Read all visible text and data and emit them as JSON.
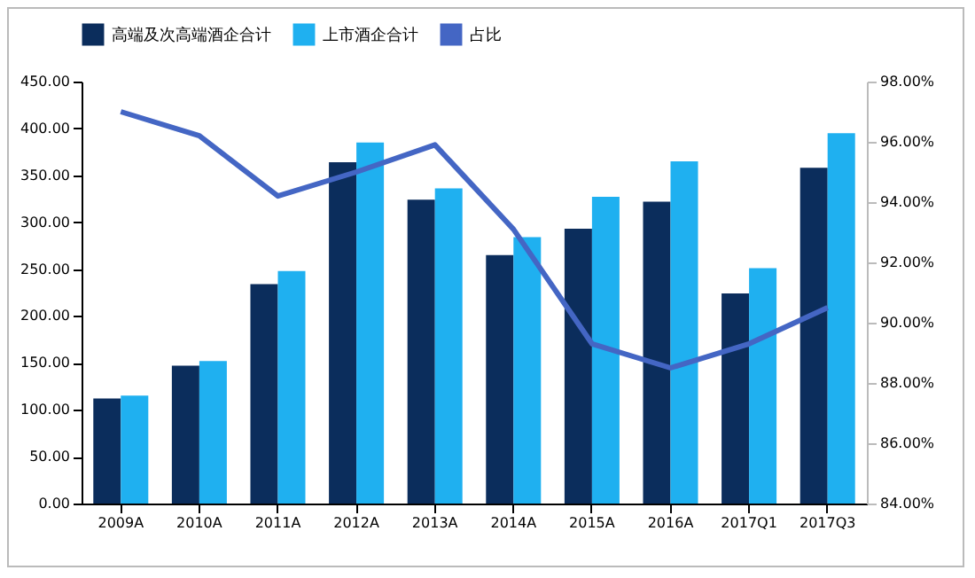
{
  "chart_data": {
    "type": "bar",
    "categories": [
      "2009A",
      "2010A",
      "2011A",
      "2012A",
      "2013A",
      "2014A",
      "2015A",
      "2016A",
      "2017Q1",
      "2017Q3"
    ],
    "series": [
      {
        "name": "高端及次高端酒企合计",
        "color": "#0b2d5c",
        "values": [
          112,
          147,
          234,
          364,
          324,
          265,
          293,
          322,
          224,
          358
        ]
      },
      {
        "name": "上市酒企合计",
        "color": "#1fb0f0",
        "values": [
          115,
          152,
          248,
          385,
          336,
          284,
          327,
          365,
          251,
          395
        ]
      },
      {
        "name": "占比",
        "type": "line",
        "axis": "y2",
        "color": "#4466c4",
        "values": [
          97.0,
          96.2,
          94.2,
          95.0,
          95.9,
          93.1,
          89.3,
          88.5,
          89.3,
          90.5
        ]
      }
    ],
    "ylim": [
      0,
      450
    ],
    "yticks": [
      {
        "value": 0,
        "label": "0.00"
      },
      {
        "value": 50,
        "label": "50.00"
      },
      {
        "value": 100,
        "label": "100.00"
      },
      {
        "value": 150,
        "label": "150.00"
      },
      {
        "value": 200,
        "label": "200.00"
      },
      {
        "value": 250,
        "label": "250.00"
      },
      {
        "value": 300,
        "label": "300.00"
      },
      {
        "value": 350,
        "label": "350.00"
      },
      {
        "value": 400,
        "label": "400.00"
      },
      {
        "value": 450,
        "label": "450.00"
      }
    ],
    "y2lim": [
      84,
      98
    ],
    "y2ticks": [
      {
        "value": 84,
        "label": "84.00%"
      },
      {
        "value": 86,
        "label": "86.00%"
      },
      {
        "value": 88,
        "label": "88.00%"
      },
      {
        "value": 90,
        "label": "90.00%"
      },
      {
        "value": 92,
        "label": "92.00%"
      },
      {
        "value": 94,
        "label": "94.00%"
      },
      {
        "value": 96,
        "label": "96.00%"
      },
      {
        "value": 98,
        "label": "98.00%"
      }
    ],
    "legend": "top",
    "grid": false
  }
}
